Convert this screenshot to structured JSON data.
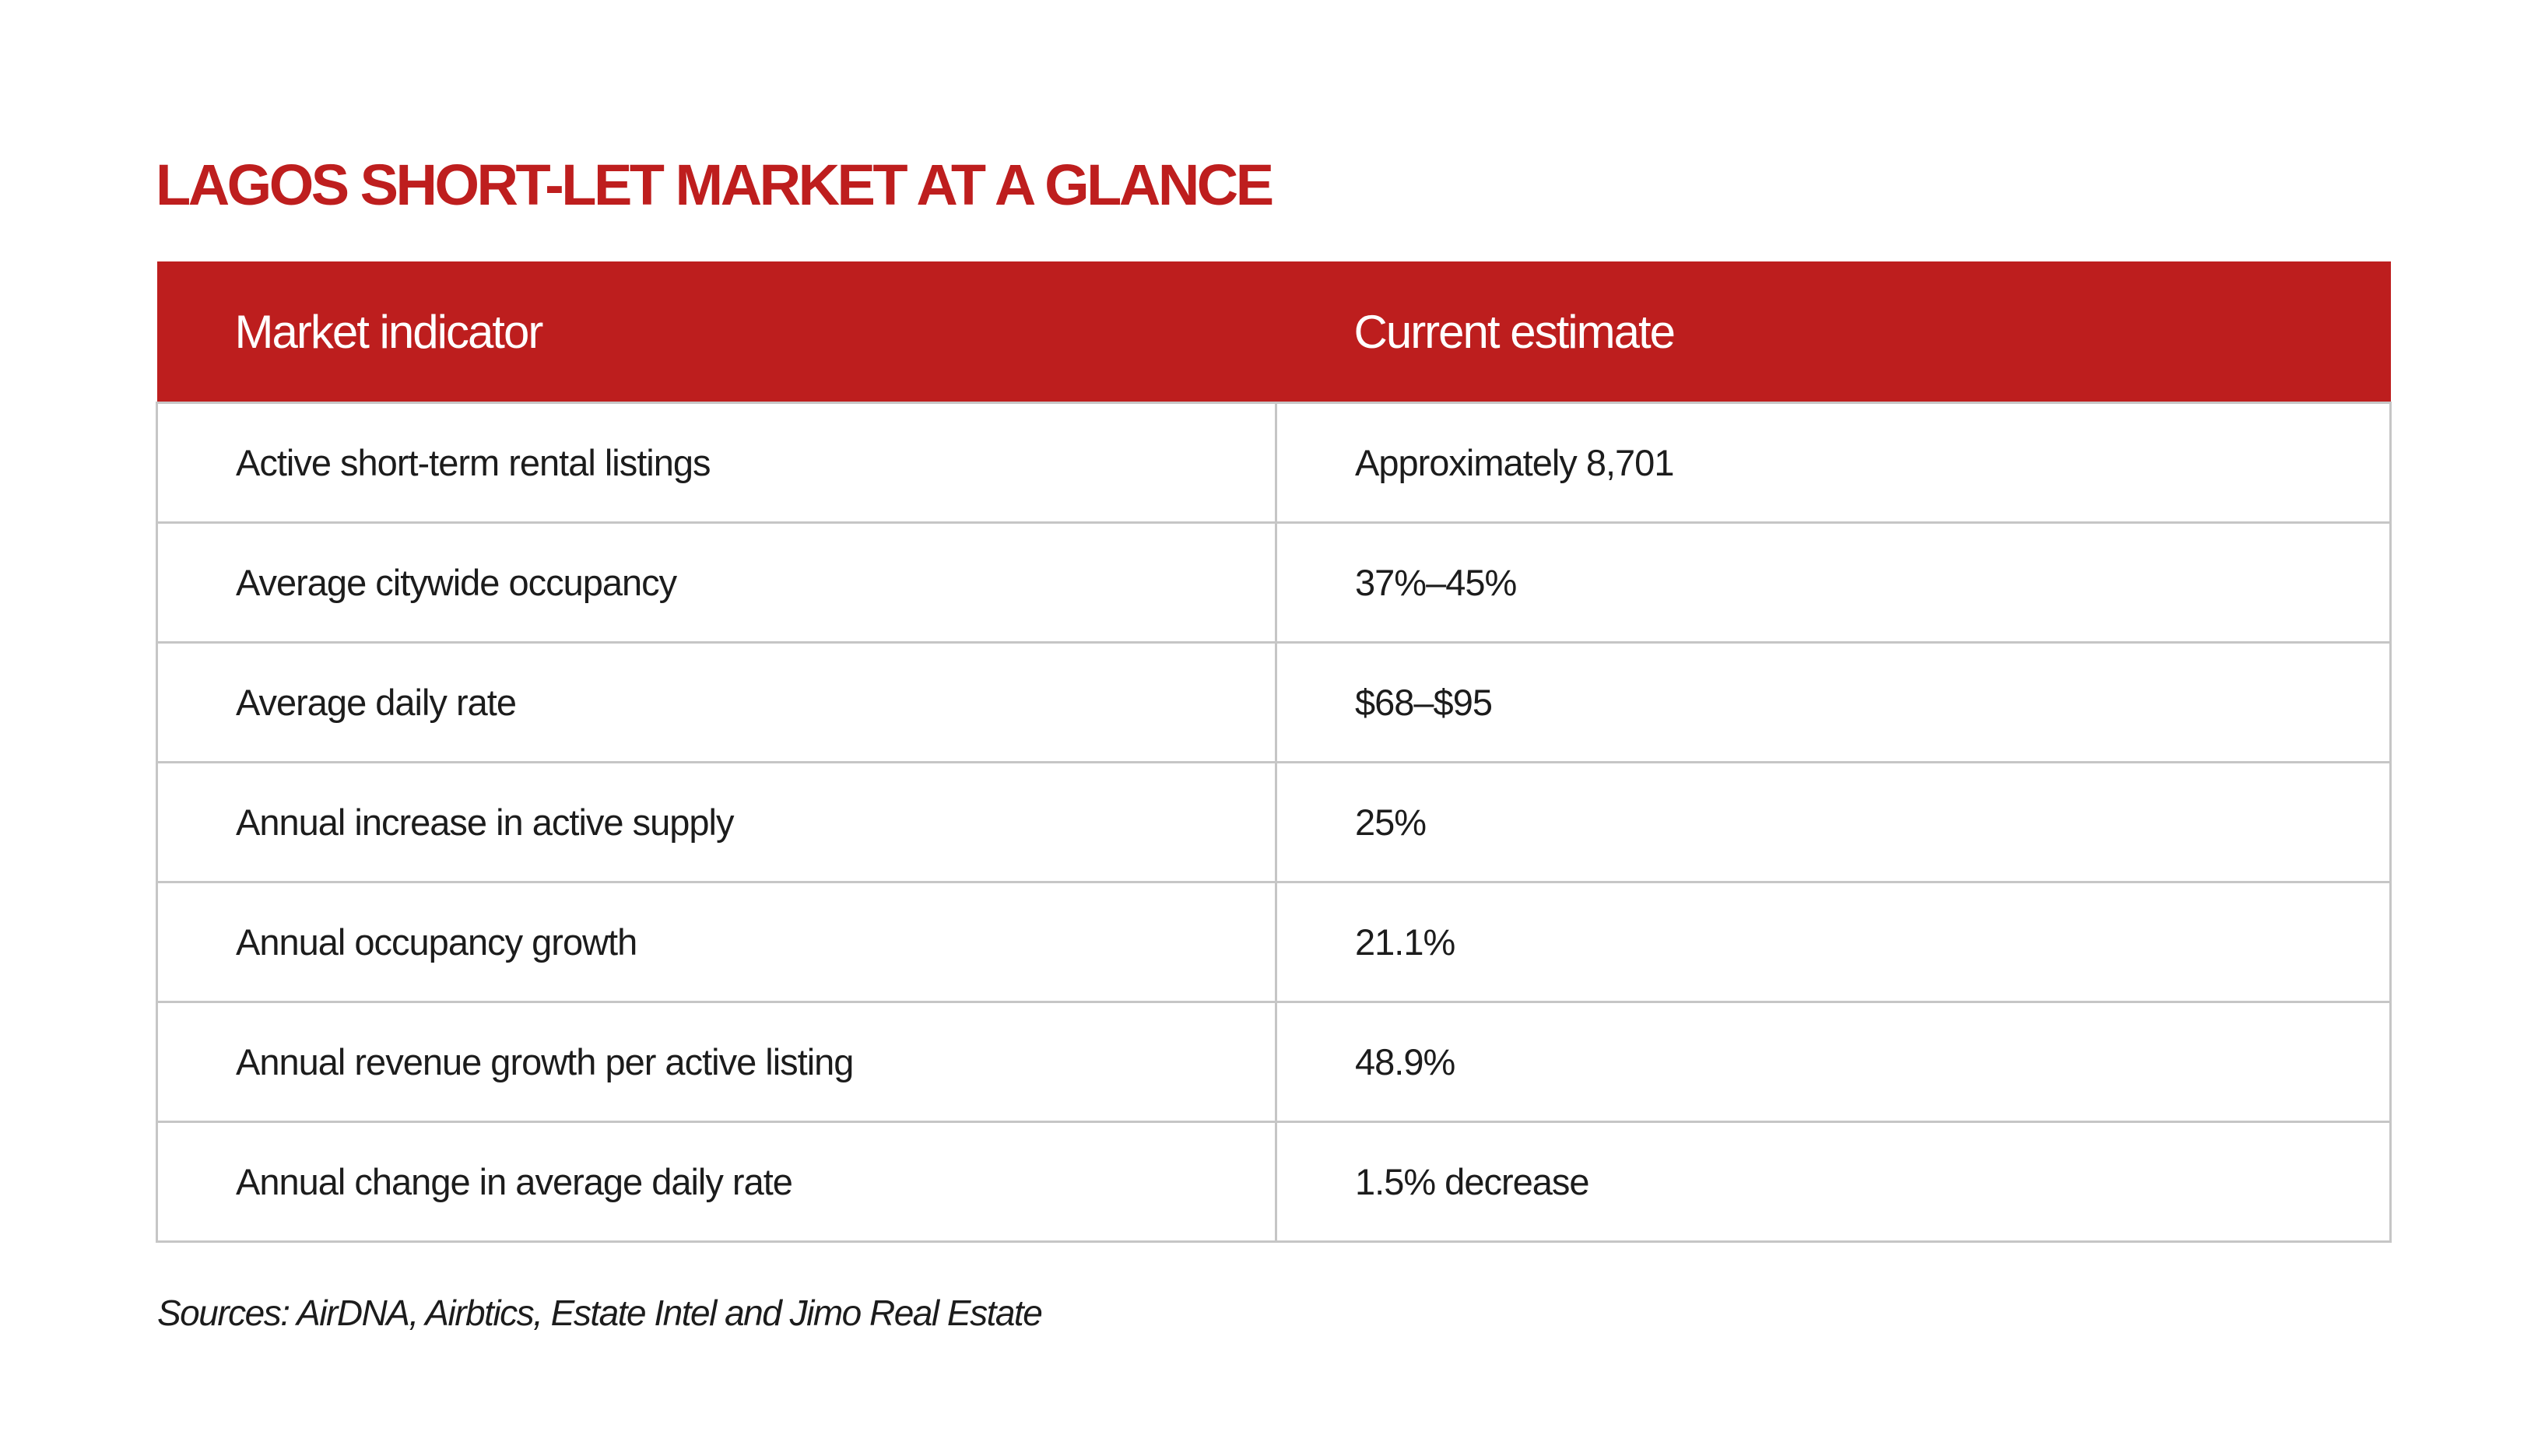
{
  "title": "LAGOS SHORT-LET MARKET AT A GLANCE",
  "table": {
    "headers": [
      "Market indicator",
      "Current estimate"
    ],
    "rows": [
      [
        "Active short-term rental listings",
        "Approximately 8,701"
      ],
      [
        "Average citywide occupancy",
        "37%–45%"
      ],
      [
        "Average daily rate",
        "$68–$95"
      ],
      [
        "Annual increase in active supply",
        "25%"
      ],
      [
        "Annual occupancy growth",
        "21.1%"
      ],
      [
        "Annual revenue growth per active listing",
        "48.9%"
      ],
      [
        "Annual change in average daily rate",
        "1.5% decrease"
      ]
    ]
  },
  "source": "Sources: AirDNA, Airbtics, Estate Intel and Jimo Real Estate",
  "colors": {
    "accent": "#bd1e1e",
    "header_text": "#ffffff",
    "border": "#c6c6c6",
    "text": "#1c1c1c"
  }
}
